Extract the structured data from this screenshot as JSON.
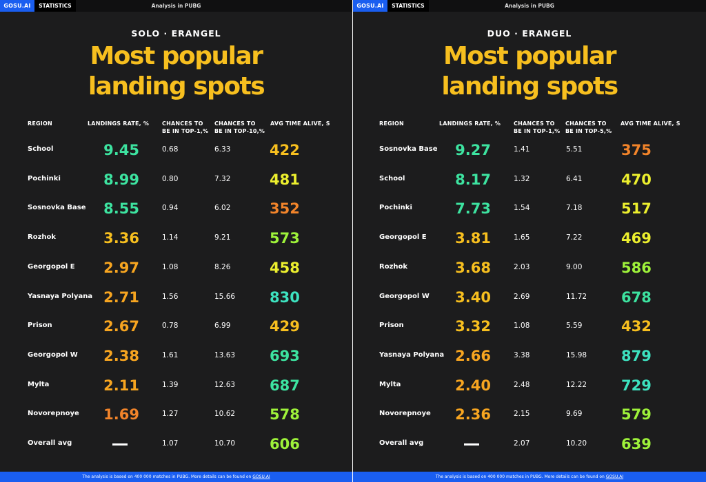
{
  "colors": {
    "headline": "#f7bf1f",
    "brand": "#1a5ef0",
    "background": "#1c1c1d"
  },
  "topbar": {
    "brand": "GOSU.AI",
    "stats": "STATISTICS",
    "title": "Analysis in PUBG"
  },
  "footer": {
    "text": "The analysis is based on 400 000 matches in PUBG. More details can be found on ",
    "link": "GOSU.AI"
  },
  "headline": {
    "line1": "Most popular",
    "line2": "landing spots"
  },
  "left": {
    "mode": "SOLO · ERANGEL",
    "columns": [
      "REGION",
      "LANDINGS RATE, %",
      "CHANCES TO",
      "BE IN TOP-1,%",
      "CHANCES TO",
      "BE IN TOP-10,%",
      "AVG TIME ALIVE, S"
    ],
    "rows": [
      {
        "region": "School",
        "rate": "9.45",
        "top1": "0.68",
        "top10": "6.33",
        "alive": "422",
        "rate_color": "#3de3a0",
        "alive_color": "#f7bf1f"
      },
      {
        "region": "Pochinki",
        "rate": "8.99",
        "top1": "0.80",
        "top10": "7.32",
        "alive": "481",
        "rate_color": "#3de3a0",
        "alive_color": "#ecef2e"
      },
      {
        "region": "Sosnovka Base",
        "rate": "8.55",
        "top1": "0.94",
        "top10": "6.02",
        "alive": "352",
        "rate_color": "#3de3a0",
        "alive_color": "#f2842a"
      },
      {
        "region": "Rozhok",
        "rate": "3.36",
        "top1": "1.14",
        "top10": "9.21",
        "alive": "573",
        "rate_color": "#f7bf1f",
        "alive_color": "#9ef23a"
      },
      {
        "region": "Georgopol E",
        "rate": "2.97",
        "top1": "1.08",
        "top10": "8.26",
        "alive": "458",
        "rate_color": "#f7a520",
        "alive_color": "#ecef2e"
      },
      {
        "region": "Yasnaya Polyana",
        "rate": "2.71",
        "top1": "1.56",
        "top10": "15.66",
        "alive": "830",
        "rate_color": "#f7a520",
        "alive_color": "#3de3c0"
      },
      {
        "region": "Prison",
        "rate": "2.67",
        "top1": "0.78",
        "top10": "6.99",
        "alive": "429",
        "rate_color": "#f7a520",
        "alive_color": "#f7bf1f"
      },
      {
        "region": "Georgopol W",
        "rate": "2.38",
        "top1": "1.61",
        "top10": "13.63",
        "alive": "693",
        "rate_color": "#f7a520",
        "alive_color": "#3de3a0"
      },
      {
        "region": "Mylta",
        "rate": "2.11",
        "top1": "1.39",
        "top10": "12.63",
        "alive": "687",
        "rate_color": "#f7a520",
        "alive_color": "#3de3a0"
      },
      {
        "region": "Novorepnoye",
        "rate": "1.69",
        "top1": "1.27",
        "top10": "10.62",
        "alive": "578",
        "rate_color": "#f2842a",
        "alive_color": "#9ef23a"
      },
      {
        "region": "Overall avg",
        "rate": "",
        "top1": "1.07",
        "top10": "10.70",
        "alive": "606",
        "rate_color": "#ffffff",
        "alive_color": "#9ef23a"
      }
    ]
  },
  "right": {
    "mode": "DUO · ERANGEL",
    "columns": [
      "REGION",
      "LANDINGS RATE, %",
      "CHANCES TO",
      "BE IN TOP-1,%",
      "CHANCES TO",
      "BE IN TOP-5,%",
      "AVG TIME ALIVE, S"
    ],
    "rows": [
      {
        "region": "Sosnovka Base",
        "rate": "9.27",
        "top1": "1.41",
        "top10": "5.51",
        "alive": "375",
        "rate_color": "#3de3a0",
        "alive_color": "#f2842a"
      },
      {
        "region": "School",
        "rate": "8.17",
        "top1": "1.32",
        "top10": "6.41",
        "alive": "470",
        "rate_color": "#3de3a0",
        "alive_color": "#ecef2e"
      },
      {
        "region": "Pochinki",
        "rate": "7.73",
        "top1": "1.54",
        "top10": "7.18",
        "alive": "517",
        "rate_color": "#3de3a0",
        "alive_color": "#ecef2e"
      },
      {
        "region": "Georgopol E",
        "rate": "3.81",
        "top1": "1.65",
        "top10": "7.22",
        "alive": "469",
        "rate_color": "#f7bf1f",
        "alive_color": "#ecef2e"
      },
      {
        "region": "Rozhok",
        "rate": "3.68",
        "top1": "2.03",
        "top10": "9.00",
        "alive": "586",
        "rate_color": "#f7bf1f",
        "alive_color": "#9ef23a"
      },
      {
        "region": "Georgopol W",
        "rate": "3.40",
        "top1": "2.69",
        "top10": "11.72",
        "alive": "678",
        "rate_color": "#f7bf1f",
        "alive_color": "#3de3a0"
      },
      {
        "region": "Prison",
        "rate": "3.32",
        "top1": "1.08",
        "top10": "5.59",
        "alive": "432",
        "rate_color": "#f7bf1f",
        "alive_color": "#f7bf1f"
      },
      {
        "region": "Yasnaya Polyana",
        "rate": "2.66",
        "top1": "3.38",
        "top10": "15.98",
        "alive": "879",
        "rate_color": "#f7a520",
        "alive_color": "#3de3c0"
      },
      {
        "region": "Mylta",
        "rate": "2.40",
        "top1": "2.48",
        "top10": "12.22",
        "alive": "729",
        "rate_color": "#f7a520",
        "alive_color": "#3de3c0"
      },
      {
        "region": "Novorepnoye",
        "rate": "2.36",
        "top1": "2.15",
        "top10": "9.69",
        "alive": "579",
        "rate_color": "#f7a520",
        "alive_color": "#9ef23a"
      },
      {
        "region": "Overall avg",
        "rate": "",
        "top1": "2.07",
        "top10": "10.20",
        "alive": "639",
        "rate_color": "#ffffff",
        "alive_color": "#9ef23a"
      }
    ]
  }
}
